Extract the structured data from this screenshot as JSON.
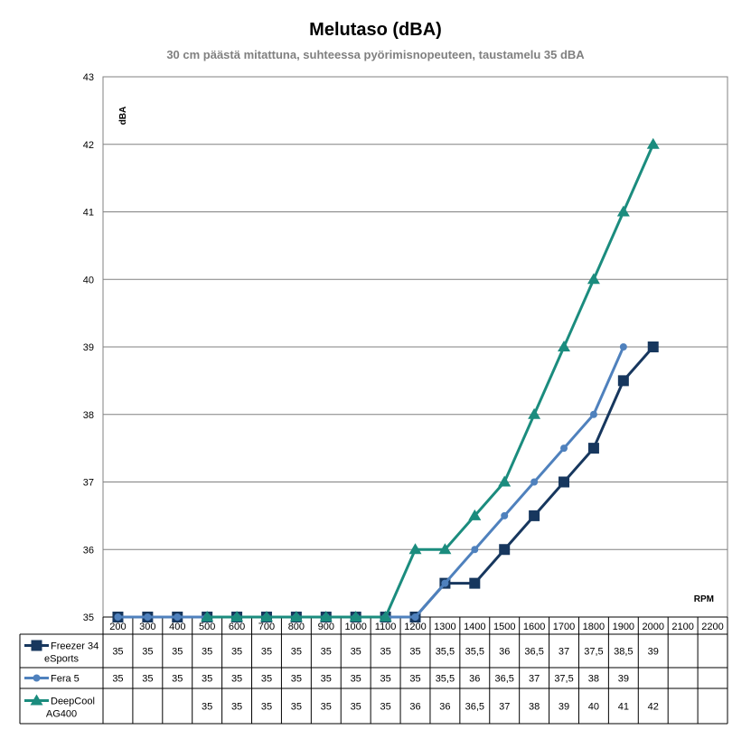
{
  "chart_data": {
    "type": "line",
    "title": "Melutaso (dBA)",
    "subtitle": "30 cm päästä mitattuna, suhteessa pyörimisnopeuteen, taustamelu 35 dBA",
    "ylabel": "dBA",
    "xlabel": "RPM",
    "ylim": [
      35,
      43
    ],
    "yticks": [
      35,
      36,
      37,
      38,
      39,
      40,
      41,
      42,
      43
    ],
    "grid": true,
    "legend": "table-left",
    "categories": [
      "200",
      "300",
      "400",
      "500",
      "600",
      "700",
      "800",
      "900",
      "1000",
      "1100",
      "1200",
      "1300",
      "1400",
      "1500",
      "1600",
      "1700",
      "1800",
      "1900",
      "2000",
      "2100",
      "2200"
    ],
    "series": [
      {
        "name": "Freezer 34 eSports",
        "legend_lines": [
          "Freezer 34",
          "eSports"
        ],
        "marker": "square",
        "color": "#17375E",
        "values": [
          35,
          35,
          35,
          35,
          35,
          35,
          35,
          35,
          35,
          35,
          35,
          35.5,
          35.5,
          36,
          36.5,
          37,
          37.5,
          38.5,
          39,
          null,
          null
        ],
        "labels": [
          "35",
          "35",
          "35",
          "35",
          "35",
          "35",
          "35",
          "35",
          "35",
          "35",
          "35",
          "35,5",
          "35,5",
          "36",
          "36,5",
          "37",
          "37,5",
          "38,5",
          "39",
          "",
          ""
        ]
      },
      {
        "name": "Fera 5",
        "legend_lines": [
          "Fera 5"
        ],
        "marker": "circle",
        "color": "#4F81BD",
        "values": [
          35,
          35,
          35,
          35,
          35,
          35,
          35,
          35,
          35,
          35,
          35,
          35.5,
          36,
          36.5,
          37,
          37.5,
          38,
          39,
          null,
          null,
          null
        ],
        "labels": [
          "35",
          "35",
          "35",
          "35",
          "35",
          "35",
          "35",
          "35",
          "35",
          "35",
          "35",
          "35,5",
          "36",
          "36,5",
          "37",
          "37,5",
          "38",
          "39",
          "",
          "",
          ""
        ]
      },
      {
        "name": "DeepCool AG400",
        "legend_lines": [
          "DeepCool",
          "AG400"
        ],
        "marker": "triangle",
        "color": "#1B8C7E",
        "values": [
          null,
          null,
          null,
          35,
          35,
          35,
          35,
          35,
          35,
          35,
          36,
          36,
          36.5,
          37,
          38,
          39,
          40,
          41,
          42,
          null,
          null
        ],
        "labels": [
          "",
          "",
          "",
          "35",
          "35",
          "35",
          "35",
          "35",
          "35",
          "35",
          "36",
          "36",
          "36,5",
          "37",
          "38",
          "39",
          "40",
          "41",
          "42",
          "",
          ""
        ]
      }
    ]
  }
}
